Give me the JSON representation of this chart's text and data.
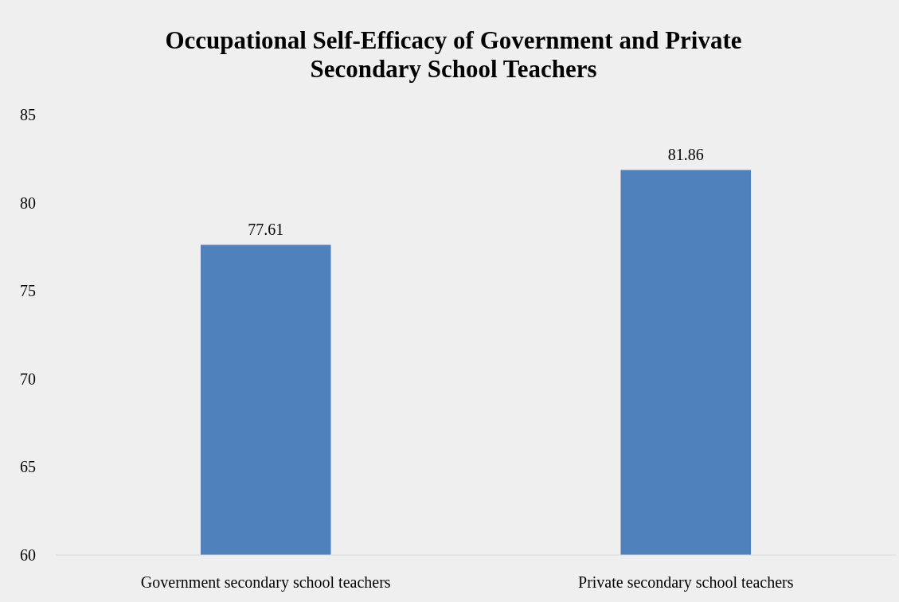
{
  "chart_data": {
    "type": "bar",
    "title": "Occupational Self-Efficacy of Government and Private Secondary School Teachers",
    "categories": [
      "Government secondary school teachers",
      "Private secondary school teachers"
    ],
    "values": [
      77.61,
      81.86
    ],
    "color": "#4f81bd",
    "ylim": [
      60,
      85
    ],
    "yticks": [
      60,
      65,
      70,
      75,
      80,
      85
    ],
    "grid": false,
    "data_labels": true
  }
}
